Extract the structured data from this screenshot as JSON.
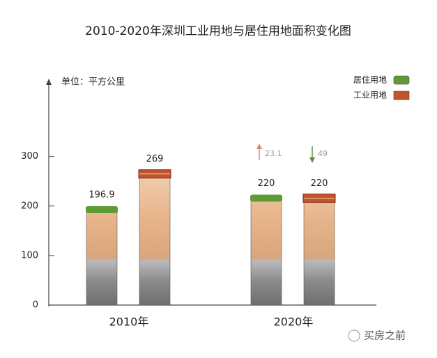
{
  "chart_data": {
    "type": "bar",
    "title": "2010-2020年深圳工业用地与居住用地面积变化图",
    "y_label": "单位：平方公里",
    "categories": [
      "2010年",
      "2020年"
    ],
    "series": [
      {
        "name": "居住用地",
        "color": "#5f9b35",
        "values": [
          196.9,
          220
        ]
      },
      {
        "name": "工业用地",
        "color": "#c2532b",
        "values": [
          269,
          220
        ]
      }
    ],
    "annotations": [
      {
        "text": "23.1",
        "color": "#d98a6a"
      },
      {
        "text": "49",
        "color": "#5f8a3a"
      }
    ],
    "ylim": [
      0,
      450
    ],
    "yticks": [
      0,
      100,
      200,
      300
    ],
    "legend": "top-right",
    "watermark": "买房之前"
  }
}
